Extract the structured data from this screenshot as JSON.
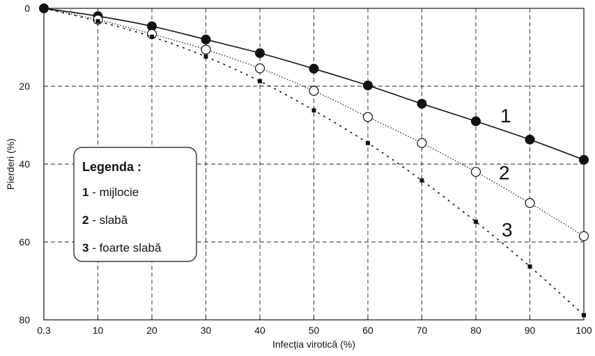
{
  "chart_data": {
    "type": "line",
    "xlabel": "Infecția virotică (%)",
    "ylabel": "Pierderi (%)",
    "x_ticks": [
      "0.3",
      "10",
      "20",
      "30",
      "40",
      "50",
      "60",
      "70",
      "80",
      "90",
      "100"
    ],
    "y_ticks": [
      "0",
      "20",
      "40",
      "60",
      "80"
    ],
    "xlim": [
      0.3,
      100
    ],
    "ylim": [
      0,
      80
    ],
    "y_inverted": true,
    "grid": true,
    "x": [
      0.3,
      10,
      20,
      30,
      40,
      50,
      60,
      70,
      80,
      90,
      100
    ],
    "series": [
      {
        "name": "1",
        "marker": "filled-circle",
        "line": "solid",
        "values": [
          0,
          2,
          4.6,
          8,
          11.5,
          15.5,
          19.8,
          24.5,
          29,
          33.7,
          38.9
        ]
      },
      {
        "name": "2",
        "marker": "open-circle",
        "line": "dotted",
        "values": [
          0,
          2.9,
          6.6,
          10.6,
          15.4,
          21.2,
          27.9,
          34.6,
          42,
          50,
          58.5
        ]
      },
      {
        "name": "3",
        "marker": "square",
        "line": "dashed",
        "values": [
          0,
          3.3,
          7.3,
          12.4,
          18.7,
          26.2,
          34.6,
          44.2,
          54.8,
          66.3,
          78.8
        ]
      }
    ],
    "curve_labels": [
      "1",
      "2",
      "3"
    ],
    "legend": {
      "title": "Legenda :",
      "placement": "left-middle",
      "items": [
        {
          "num": "1",
          "text": " - mijlocie"
        },
        {
          "num": "2",
          "text": " - slabă"
        },
        {
          "num": "3",
          "text": " - foarte slabă"
        }
      ]
    }
  }
}
